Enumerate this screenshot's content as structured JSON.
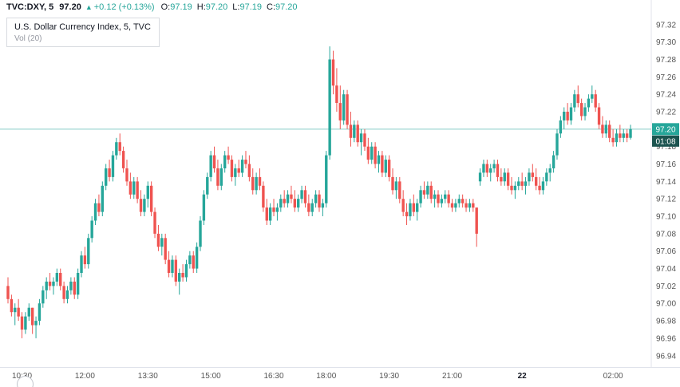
{
  "header": {
    "symbol": "TVC:DXY, 5",
    "last": "97.20",
    "direction": "▲",
    "change": "+0.12 (+0.13%)",
    "ohlc": [
      {
        "label": "O:",
        "value": "97.19"
      },
      {
        "label": "H:",
        "value": "97.20"
      },
      {
        "label": "L:",
        "value": "97.19"
      },
      {
        "label": "C:",
        "value": "97.20"
      }
    ]
  },
  "legend": {
    "title": "U.S. Dollar Currency Index, 5, TVC",
    "indicator": "Vol (20)"
  },
  "price_marker": {
    "price": "97.20",
    "countdown": "01:08"
  },
  "colors": {
    "up": "#26a69a",
    "down": "#ef5350",
    "price_line": "#26a69a",
    "price_badge_bg": "#26a69a",
    "countdown_badge_bg": "#1b534f",
    "axis_text": "#555555",
    "header_green": "#26a69a",
    "axis_border": "#e0e3eb"
  },
  "chart_data": {
    "type": "candlestick",
    "title": "U.S. Dollar Currency Index, 5, TVC",
    "interval_minutes": 5,
    "last_price": 97.2,
    "ylim": [
      96.94,
      97.32
    ],
    "grid": false,
    "price_axis": [
      97.32,
      97.3,
      97.28,
      97.26,
      97.24,
      97.22,
      97.2,
      97.18,
      97.16,
      97.14,
      97.12,
      97.1,
      97.08,
      97.06,
      97.04,
      97.02,
      97.0,
      96.98,
      96.96,
      96.94
    ],
    "time_axis": [
      {
        "label": "10:30",
        "i": 4
      },
      {
        "label": "12:00",
        "i": 22
      },
      {
        "label": "13:30",
        "i": 40
      },
      {
        "label": "15:00",
        "i": 58
      },
      {
        "label": "16:30",
        "i": 76
      },
      {
        "label": "18:00",
        "i": 91
      },
      {
        "label": "19:30",
        "i": 109
      },
      {
        "label": "21:00",
        "i": 127
      },
      {
        "label": "22",
        "i": 147,
        "bold": true
      },
      {
        "label": "02:00",
        "i": 173
      }
    ],
    "candles": [
      [
        97.02,
        97.03,
        97.0,
        97.005
      ],
      [
        97.005,
        97.01,
        96.985,
        96.99
      ],
      [
        96.99,
        97.0,
        96.975,
        96.995
      ],
      [
        96.995,
        97.005,
        96.98,
        96.985
      ],
      [
        96.985,
        96.99,
        96.96,
        96.97
      ],
      [
        96.97,
        96.99,
        96.965,
        96.985
      ],
      [
        96.985,
        97.0,
        96.98,
        96.995
      ],
      [
        96.995,
        96.995,
        96.965,
        96.975
      ],
      [
        96.975,
        96.985,
        96.96,
        96.98
      ],
      [
        96.98,
        97.005,
        96.975,
        97.0
      ],
      [
        97.0,
        97.02,
        96.995,
        97.015
      ],
      [
        97.015,
        97.03,
        97.005,
        97.025
      ],
      [
        97.025,
        97.035,
        97.015,
        97.02
      ],
      [
        97.02,
        97.03,
        97.01,
        97.025
      ],
      [
        97.025,
        97.04,
        97.02,
        97.035
      ],
      [
        97.035,
        97.04,
        97.015,
        97.02
      ],
      [
        97.02,
        97.025,
        97.0,
        97.005
      ],
      [
        97.005,
        97.02,
        97.0,
        97.015
      ],
      [
        97.015,
        97.03,
        97.01,
        97.025
      ],
      [
        97.025,
        97.03,
        97.005,
        97.01
      ],
      [
        97.01,
        97.04,
        97.005,
        97.035
      ],
      [
        97.035,
        97.06,
        97.03,
        97.055
      ],
      [
        97.055,
        97.065,
        97.04,
        97.045
      ],
      [
        97.045,
        97.08,
        97.04,
        97.075
      ],
      [
        97.075,
        97.1,
        97.07,
        97.095
      ],
      [
        97.095,
        97.12,
        97.09,
        97.115
      ],
      [
        97.115,
        97.125,
        97.1,
        97.105
      ],
      [
        97.105,
        97.14,
        97.1,
        97.135
      ],
      [
        97.135,
        97.16,
        97.13,
        97.155
      ],
      [
        97.155,
        97.165,
        97.14,
        97.145
      ],
      [
        97.145,
        97.175,
        97.14,
        97.17
      ],
      [
        97.17,
        97.19,
        97.165,
        97.185
      ],
      [
        97.185,
        97.195,
        97.17,
        97.175
      ],
      [
        97.175,
        97.18,
        97.15,
        97.155
      ],
      [
        97.155,
        97.165,
        97.135,
        97.14
      ],
      [
        97.14,
        97.15,
        97.12,
        97.125
      ],
      [
        97.125,
        97.145,
        97.12,
        97.14
      ],
      [
        97.14,
        97.145,
        97.115,
        97.12
      ],
      [
        97.12,
        97.13,
        97.1,
        97.105
      ],
      [
        97.105,
        97.125,
        97.1,
        97.12
      ],
      [
        97.12,
        97.14,
        97.11,
        97.135
      ],
      [
        97.135,
        97.14,
        97.1,
        97.105
      ],
      [
        97.105,
        97.11,
        97.075,
        97.08
      ],
      [
        97.08,
        97.09,
        97.06,
        97.065
      ],
      [
        97.065,
        97.08,
        97.055,
        97.075
      ],
      [
        97.075,
        97.08,
        97.045,
        97.05
      ],
      [
        97.05,
        97.06,
        97.03,
        97.035
      ],
      [
        97.035,
        97.055,
        97.03,
        97.05
      ],
      [
        97.05,
        97.055,
        97.02,
        97.025
      ],
      [
        97.025,
        97.04,
        97.01,
        97.035
      ],
      [
        97.035,
        97.045,
        97.025,
        97.03
      ],
      [
        97.03,
        97.05,
        97.025,
        97.045
      ],
      [
        97.045,
        97.06,
        97.04,
        97.055
      ],
      [
        97.055,
        97.06,
        97.035,
        97.04
      ],
      [
        97.04,
        97.07,
        97.035,
        97.065
      ],
      [
        97.065,
        97.1,
        97.06,
        97.095
      ],
      [
        97.095,
        97.13,
        97.09,
        97.125
      ],
      [
        97.125,
        97.15,
        97.12,
        97.145
      ],
      [
        97.145,
        97.175,
        97.14,
        97.17
      ],
      [
        97.17,
        97.18,
        97.15,
        97.155
      ],
      [
        97.155,
        97.165,
        97.13,
        97.135
      ],
      [
        97.135,
        97.16,
        97.13,
        97.155
      ],
      [
        97.155,
        97.175,
        97.15,
        97.17
      ],
      [
        97.17,
        97.18,
        97.16,
        97.165
      ],
      [
        97.165,
        97.17,
        97.14,
        97.145
      ],
      [
        97.145,
        97.16,
        97.135,
        97.155
      ],
      [
        97.155,
        97.165,
        97.145,
        97.15
      ],
      [
        97.15,
        97.17,
        97.145,
        97.165
      ],
      [
        97.165,
        97.175,
        97.155,
        97.16
      ],
      [
        97.16,
        97.17,
        97.14,
        97.145
      ],
      [
        97.145,
        97.155,
        97.125,
        97.13
      ],
      [
        97.13,
        97.15,
        97.125,
        97.145
      ],
      [
        97.145,
        97.155,
        97.13,
        97.135
      ],
      [
        97.135,
        97.14,
        97.105,
        97.11
      ],
      [
        97.11,
        97.12,
        97.09,
        97.095
      ],
      [
        97.095,
        97.115,
        97.09,
        97.11
      ],
      [
        97.11,
        97.12,
        97.1,
        97.105
      ],
      [
        97.105,
        97.115,
        97.095,
        97.11
      ],
      [
        97.11,
        97.125,
        97.105,
        97.12
      ],
      [
        97.12,
        97.13,
        97.11,
        97.115
      ],
      [
        97.115,
        97.13,
        97.11,
        97.125
      ],
      [
        97.125,
        97.135,
        97.115,
        97.12
      ],
      [
        97.12,
        97.13,
        97.105,
        97.11
      ],
      [
        97.11,
        97.125,
        97.105,
        97.12
      ],
      [
        97.12,
        97.135,
        97.115,
        97.13
      ],
      [
        97.13,
        97.135,
        97.11,
        97.115
      ],
      [
        97.115,
        97.125,
        97.1,
        97.105
      ],
      [
        97.105,
        97.12,
        97.1,
        97.115
      ],
      [
        97.115,
        97.13,
        97.11,
        97.125
      ],
      [
        97.125,
        97.13,
        97.105,
        97.11
      ],
      [
        97.11,
        97.12,
        97.1,
        97.115
      ],
      [
        97.115,
        97.175,
        97.11,
        97.17
      ],
      [
        97.17,
        97.295,
        97.165,
        97.28
      ],
      [
        97.28,
        97.29,
        97.24,
        97.25
      ],
      [
        97.25,
        97.27,
        97.22,
        97.23
      ],
      [
        97.23,
        97.25,
        97.2,
        97.21
      ],
      [
        97.21,
        97.245,
        97.205,
        97.24
      ],
      [
        97.24,
        97.245,
        97.2,
        97.205
      ],
      [
        97.205,
        97.22,
        97.18,
        97.19
      ],
      [
        97.19,
        97.21,
        97.185,
        97.205
      ],
      [
        97.205,
        97.21,
        97.18,
        97.185
      ],
      [
        97.185,
        97.2,
        97.17,
        97.195
      ],
      [
        97.195,
        97.2,
        97.175,
        97.18
      ],
      [
        97.18,
        97.19,
        97.16,
        97.165
      ],
      [
        97.165,
        97.185,
        97.16,
        97.18
      ],
      [
        97.18,
        97.185,
        97.155,
        97.16
      ],
      [
        97.16,
        97.175,
        97.15,
        97.17
      ],
      [
        97.17,
        97.175,
        97.145,
        97.15
      ],
      [
        97.15,
        97.17,
        97.145,
        97.165
      ],
      [
        97.165,
        97.17,
        97.14,
        97.145
      ],
      [
        97.145,
        97.155,
        97.125,
        97.13
      ],
      [
        97.13,
        97.145,
        97.12,
        97.14
      ],
      [
        97.14,
        97.145,
        97.115,
        97.12
      ],
      [
        97.12,
        97.13,
        97.1,
        97.105
      ],
      [
        97.105,
        97.115,
        97.09,
        97.1
      ],
      [
        97.1,
        97.12,
        97.095,
        97.115
      ],
      [
        97.115,
        97.125,
        97.1,
        97.105
      ],
      [
        97.105,
        97.12,
        97.095,
        97.115
      ],
      [
        97.115,
        97.135,
        97.11,
        97.13
      ],
      [
        97.13,
        97.14,
        97.12,
        97.125
      ],
      [
        97.125,
        97.14,
        97.12,
        97.135
      ],
      [
        97.135,
        97.14,
        97.115,
        97.12
      ],
      [
        97.12,
        97.13,
        97.11,
        97.125
      ],
      [
        97.125,
        97.13,
        97.11,
        97.115
      ],
      [
        97.115,
        97.125,
        97.11,
        97.12
      ],
      [
        97.12,
        97.13,
        97.115,
        97.125
      ],
      [
        97.125,
        97.13,
        97.11,
        97.115
      ],
      [
        97.115,
        97.12,
        97.105,
        97.11
      ],
      [
        97.11,
        97.12,
        97.105,
        97.115
      ],
      [
        97.115,
        97.125,
        97.11,
        97.12
      ],
      [
        97.12,
        97.125,
        97.11,
        97.115
      ],
      [
        97.115,
        97.12,
        97.105,
        97.11
      ],
      [
        97.11,
        97.12,
        97.105,
        97.115
      ],
      [
        97.115,
        97.12,
        97.105,
        97.11
      ],
      [
        97.11,
        97.11,
        97.065,
        97.08
      ],
      [
        97.14,
        97.155,
        97.135,
        97.15
      ],
      [
        97.15,
        97.165,
        97.145,
        97.16
      ],
      [
        97.16,
        97.165,
        97.145,
        97.15
      ],
      [
        97.15,
        97.16,
        97.14,
        97.155
      ],
      [
        97.155,
        97.165,
        97.15,
        97.16
      ],
      [
        97.16,
        97.165,
        97.14,
        97.145
      ],
      [
        97.145,
        97.155,
        97.135,
        97.14
      ],
      [
        97.14,
        97.155,
        97.135,
        97.15
      ],
      [
        97.15,
        97.155,
        97.13,
        97.135
      ],
      [
        97.135,
        97.145,
        97.125,
        97.13
      ],
      [
        97.13,
        97.14,
        97.12,
        97.135
      ],
      [
        97.135,
        97.145,
        97.13,
        97.14
      ],
      [
        97.14,
        97.15,
        97.13,
        97.135
      ],
      [
        97.135,
        97.145,
        97.125,
        97.14
      ],
      [
        97.14,
        97.155,
        97.135,
        97.15
      ],
      [
        97.15,
        97.16,
        97.14,
        97.145
      ],
      [
        97.145,
        97.155,
        97.13,
        97.135
      ],
      [
        97.135,
        97.145,
        97.125,
        97.13
      ],
      [
        97.13,
        97.145,
        97.125,
        97.14
      ],
      [
        97.14,
        97.155,
        97.135,
        97.15
      ],
      [
        97.15,
        97.16,
        97.14,
        97.155
      ],
      [
        97.155,
        97.175,
        97.15,
        97.17
      ],
      [
        97.17,
        97.2,
        97.165,
        97.195
      ],
      [
        97.195,
        97.215,
        97.19,
        97.21
      ],
      [
        97.21,
        97.225,
        97.2,
        97.22
      ],
      [
        97.22,
        97.23,
        97.205,
        97.21
      ],
      [
        97.21,
        97.23,
        97.205,
        97.225
      ],
      [
        97.225,
        97.245,
        97.22,
        97.24
      ],
      [
        97.24,
        97.25,
        97.225,
        97.23
      ],
      [
        97.23,
        97.235,
        97.21,
        97.215
      ],
      [
        97.215,
        97.23,
        97.21,
        97.225
      ],
      [
        97.225,
        97.24,
        97.22,
        97.235
      ],
      [
        97.235,
        97.25,
        97.23,
        97.24
      ],
      [
        97.24,
        97.245,
        97.22,
        97.225
      ],
      [
        97.225,
        97.23,
        97.2,
        97.205
      ],
      [
        97.205,
        97.215,
        97.19,
        97.195
      ],
      [
        97.195,
        97.21,
        97.19,
        97.205
      ],
      [
        97.205,
        97.21,
        97.185,
        97.19
      ],
      [
        97.19,
        97.2,
        97.18,
        97.185
      ],
      [
        97.185,
        97.2,
        97.18,
        97.195
      ],
      [
        97.195,
        97.205,
        97.185,
        97.19
      ],
      [
        97.19,
        97.2,
        97.185,
        97.195
      ],
      [
        97.195,
        97.2,
        97.185,
        97.19
      ],
      [
        97.19,
        97.205,
        97.188,
        97.2
      ]
    ]
  }
}
